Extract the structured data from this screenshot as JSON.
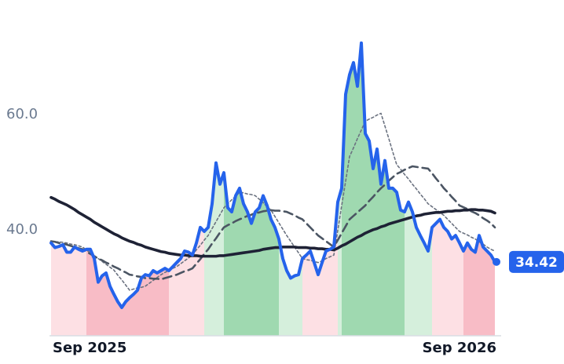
{
  "chart_data": {
    "type": "line",
    "categories": [
      "Sep 2025",
      null,
      null,
      null,
      null,
      null,
      null,
      null,
      null,
      null,
      null,
      null,
      null,
      null,
      null,
      null,
      null,
      null,
      null,
      null,
      null,
      null,
      null,
      null,
      null,
      null,
      null,
      null,
      null,
      null,
      null,
      null,
      null,
      null,
      null,
      null,
      null,
      null,
      null,
      null,
      null,
      null,
      null,
      null,
      null,
      null,
      null,
      null,
      null,
      null,
      null,
      null,
      null,
      null,
      null,
      null,
      null,
      null,
      null,
      null,
      null,
      null,
      null,
      null,
      null,
      null,
      null,
      null,
      null,
      null,
      null,
      null,
      null,
      null,
      null,
      null,
      null,
      null,
      null,
      null,
      null,
      null,
      null,
      null,
      null,
      null,
      null,
      null,
      null,
      null,
      null,
      null,
      null,
      null,
      null,
      null,
      null,
      null,
      null,
      null,
      null,
      null,
      null,
      null,
      null,
      null,
      null,
      null,
      null,
      null,
      null,
      null,
      null,
      "Sep 2026"
    ],
    "series": [
      {
        "color": "#2563eb",
        "style": "solid",
        "width": 4,
        "values": [
          37.7,
          36.9,
          37.1,
          37.4,
          36.1,
          36.1,
          37.0,
          36.6,
          36.3,
          36.6,
          36.6,
          35.0,
          30.9,
          32.0,
          32.5,
          30.2,
          28.8,
          27.5,
          26.5,
          27.5,
          28.2,
          28.8,
          29.5,
          31.6,
          32.2,
          32.0,
          32.9,
          32.5,
          32.9,
          33.3,
          32.9,
          33.6,
          34.3,
          35.0,
          36.3,
          36.1,
          35.6,
          37.7,
          40.4,
          39.7,
          40.4,
          44.5,
          51.6,
          47.9,
          49.9,
          43.8,
          43.1,
          45.9,
          47.2,
          44.5,
          43.1,
          41.1,
          43.1,
          43.8,
          45.9,
          44.2,
          41.8,
          40.4,
          38.4,
          35.0,
          32.9,
          31.6,
          32.0,
          32.2,
          35.0,
          35.6,
          36.3,
          34.3,
          32.2,
          34.3,
          36.3,
          36.6,
          37.0,
          44.8,
          47.2,
          63.5,
          66.9,
          69.0,
          64.9,
          72.4,
          56.7,
          55.4,
          50.6,
          54.0,
          47.9,
          52.0,
          47.2,
          47.2,
          46.5,
          43.4,
          43.1,
          44.8,
          43.1,
          40.4,
          39.0,
          37.7,
          36.3,
          40.4,
          41.1,
          41.8,
          40.4,
          39.7,
          38.4,
          39.0,
          37.7,
          36.3,
          37.7,
          36.6,
          36.1,
          39.0,
          37.0,
          36.3,
          35.6,
          34.42
        ]
      },
      {
        "color": "#6b7280",
        "style": "dotted",
        "width": 1.6,
        "values": [
          38.0,
          37.9,
          37.9,
          37.8,
          37.7,
          37.5,
          37.4,
          37.2,
          37.0,
          36.5,
          36.0,
          35.5,
          35.0,
          34.5,
          34.0,
          33.5,
          33.0,
          32.1,
          31.3,
          30.4,
          29.5,
          29.7,
          29.9,
          30.0,
          30.2,
          30.7,
          31.2,
          31.7,
          32.2,
          32.6,
          32.9,
          33.3,
          33.6,
          34.1,
          34.6,
          35.1,
          35.6,
          36.5,
          37.3,
          38.2,
          39.0,
          40.2,
          41.4,
          42.6,
          43.8,
          44.5,
          45.2,
          45.8,
          46.5,
          46.4,
          46.2,
          46.1,
          45.9,
          45.3,
          44.7,
          44.0,
          43.4,
          42.3,
          41.2,
          40.1,
          39.0,
          38.0,
          37.0,
          36.0,
          35.0,
          34.8,
          34.7,
          34.5,
          34.3,
          34.6,
          35.0,
          35.3,
          35.6,
          39.9,
          44.2,
          48.4,
          52.7,
          54.2,
          55.8,
          57.3,
          58.8,
          59.2,
          59.5,
          59.9,
          60.2,
          58.0,
          55.8,
          53.5,
          51.3,
          50.5,
          49.6,
          48.8,
          47.9,
          47.1,
          46.2,
          45.4,
          44.5,
          44.0,
          43.5,
          43.0,
          42.5,
          41.8,
          41.1,
          40.4,
          39.7,
          39.4,
          39.1,
          38.7,
          38.4,
          37.9,
          37.5,
          37.0,
          36.6,
          36.3
        ]
      },
      {
        "color": "#4b5563",
        "style": "dashed",
        "width": 2.6,
        "values": [
          38.0,
          37.9,
          37.7,
          37.6,
          37.4,
          37.2,
          37.0,
          36.8,
          36.6,
          36.2,
          35.8,
          35.4,
          35.0,
          34.7,
          34.3,
          34.0,
          33.6,
          33.3,
          32.9,
          32.6,
          32.2,
          32.1,
          31.9,
          31.8,
          31.6,
          31.6,
          31.5,
          31.5,
          31.4,
          31.6,
          31.8,
          32.0,
          32.2,
          32.5,
          32.8,
          33.0,
          33.3,
          34.1,
          34.9,
          35.8,
          36.6,
          37.6,
          38.5,
          39.5,
          40.4,
          40.8,
          41.1,
          41.5,
          41.8,
          42.1,
          42.4,
          42.6,
          42.9,
          43.0,
          43.2,
          43.3,
          43.4,
          43.3,
          43.3,
          43.2,
          43.1,
          42.8,
          42.5,
          42.1,
          41.8,
          41.1,
          40.4,
          39.7,
          39.0,
          38.5,
          38.0,
          37.5,
          37.0,
          38.2,
          39.4,
          40.6,
          41.8,
          42.4,
          43.0,
          43.6,
          44.2,
          45.0,
          45.7,
          46.5,
          47.2,
          47.8,
          48.5,
          49.1,
          49.7,
          50.0,
          50.4,
          50.7,
          51.0,
          50.9,
          50.8,
          50.7,
          50.6,
          49.8,
          48.9,
          48.1,
          47.2,
          46.5,
          45.7,
          45.0,
          44.2,
          43.9,
          43.6,
          43.2,
          42.9,
          42.5,
          42.0,
          41.6,
          41.1,
          40.4
        ]
      },
      {
        "color": "#1e2235",
        "style": "solid",
        "width": 3.6,
        "values": [
          45.6,
          45.3,
          44.9,
          44.6,
          44.3,
          43.9,
          43.5,
          43.0,
          42.6,
          42.2,
          41.8,
          41.3,
          40.9,
          40.5,
          40.1,
          39.7,
          39.3,
          39.0,
          38.6,
          38.3,
          38.0,
          37.8,
          37.5,
          37.3,
          37.0,
          36.8,
          36.6,
          36.4,
          36.2,
          36.1,
          35.9,
          35.8,
          35.7,
          35.6,
          35.6,
          35.5,
          35.5,
          35.5,
          35.4,
          35.4,
          35.4,
          35.4,
          35.4,
          35.5,
          35.5,
          35.6,
          35.7,
          35.8,
          35.9,
          36.0,
          36.1,
          36.2,
          36.3,
          36.4,
          36.6,
          36.7,
          36.8,
          36.9,
          36.9,
          37.0,
          37.0,
          37.0,
          37.0,
          36.9,
          36.9,
          36.9,
          36.8,
          36.8,
          36.7,
          36.7,
          36.6,
          36.6,
          36.5,
          36.8,
          37.2,
          37.5,
          37.9,
          38.3,
          38.7,
          39.0,
          39.4,
          39.7,
          40.0,
          40.2,
          40.5,
          40.7,
          41.0,
          41.2,
          41.4,
          41.6,
          41.8,
          42.0,
          42.2,
          42.4,
          42.5,
          42.7,
          42.8,
          42.9,
          43.0,
          43.0,
          43.1,
          43.2,
          43.2,
          43.3,
          43.3,
          43.4,
          43.4,
          43.5,
          43.5,
          43.4,
          43.4,
          43.3,
          43.2,
          42.9
        ]
      }
    ],
    "bands": [
      {
        "from": 0,
        "to": 9,
        "color": "#fde0e4"
      },
      {
        "from": 9,
        "to": 30,
        "color": "#f8bcc6"
      },
      {
        "from": 30,
        "to": 39,
        "color": "#fde0e4"
      },
      {
        "from": 39,
        "to": 44,
        "color": "#d5efdc"
      },
      {
        "from": 44,
        "to": 58,
        "color": "#9fd9b0"
      },
      {
        "from": 58,
        "to": 64,
        "color": "#d5efdc"
      },
      {
        "from": 64,
        "to": 73,
        "color": "#fde0e4"
      },
      {
        "from": 73,
        "to": 74,
        "color": "#d5efdc"
      },
      {
        "from": 74,
        "to": 90,
        "color": "#9fd9b0"
      },
      {
        "from": 90,
        "to": 97,
        "color": "#d5efdc"
      },
      {
        "from": 97,
        "to": 105,
        "color": "#fde0e4"
      },
      {
        "from": 105,
        "to": 113,
        "color": "#f8bcc6"
      }
    ],
    "ylim": [
      21.6,
      78.5
    ],
    "yticks": [
      {
        "value": 40,
        "label": "40.0"
      },
      {
        "value": 60,
        "label": "60.0"
      }
    ],
    "grid": false
  }
}
